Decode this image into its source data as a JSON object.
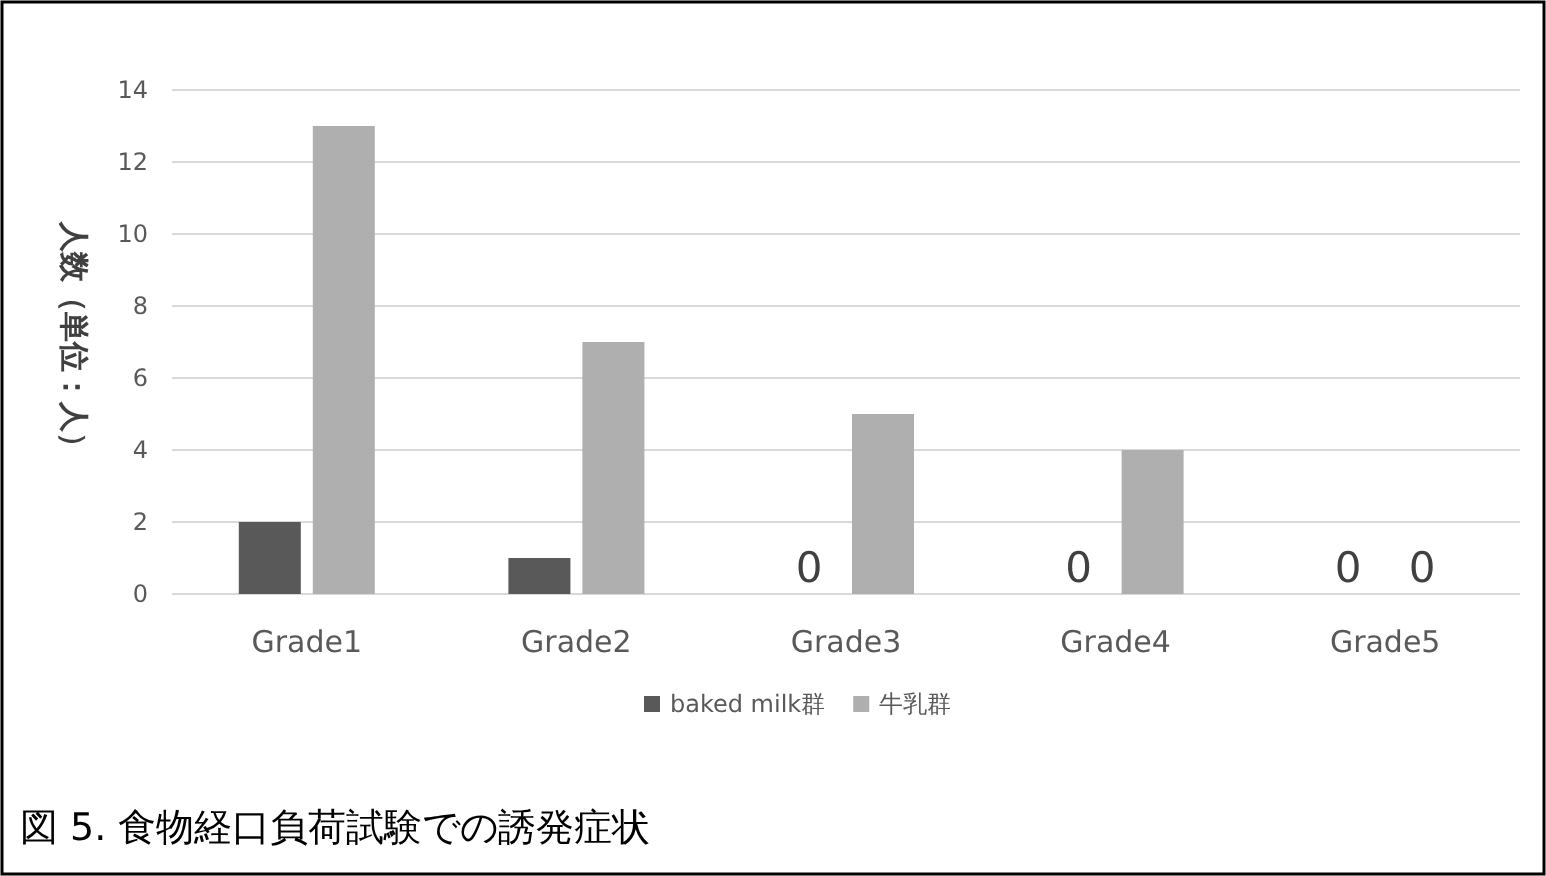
{
  "chart_data": {
    "type": "bar",
    "ylabel": "人数（単位：人）",
    "categories": [
      "Grade1",
      "Grade2",
      "Grade3",
      "Grade4",
      "Grade5"
    ],
    "series": [
      {
        "name": "baked milk群",
        "color": "#595959",
        "values": [
          2,
          1,
          0,
          0,
          0
        ],
        "value_labels": [
          null,
          null,
          "0",
          "0",
          "0"
        ]
      },
      {
        "name": "牛乳群",
        "color": "#afafaf",
        "values": [
          13,
          7,
          5,
          4,
          0
        ],
        "value_labels": [
          null,
          null,
          null,
          null,
          "0"
        ]
      }
    ],
    "ylim": [
      0,
      14
    ],
    "yticks": [
      0,
      2,
      4,
      6,
      8,
      10,
      12,
      14
    ],
    "grid": "y",
    "legend": "bottom",
    "annotations": [
      "図 5. 食物経口負荷試験での誘発症状"
    ]
  }
}
